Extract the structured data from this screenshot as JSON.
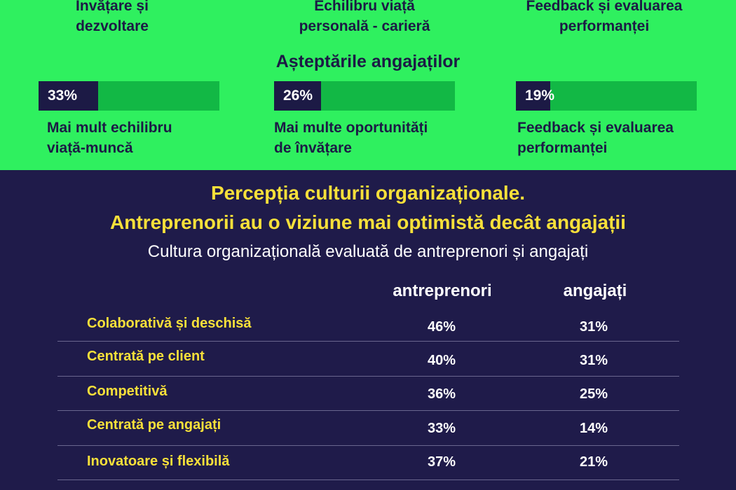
{
  "categories": [
    [
      "Învățare și",
      "dezvoltare"
    ],
    [
      "Echilibru viață",
      "personală - carieră"
    ],
    [
      "Feedback și evaluarea",
      "performanței"
    ]
  ],
  "expectations": {
    "title": "Așteptările angajaților",
    "items": [
      {
        "value": 0.33,
        "pct": "33%",
        "line1": "Mai mult echilibru",
        "line2": "viață-muncă"
      },
      {
        "value": 0.26,
        "pct": "26%",
        "line1": "Mai multe oportunități",
        "line2": "de învățare"
      },
      {
        "value": 0.19,
        "pct": "19%",
        "line1": "Feedback și evaluarea",
        "line2": "performanței"
      }
    ]
  },
  "culture": {
    "heading1": "Percepția culturii organizaționale.",
    "heading2": "Antreprenorii au o viziune mai optimistă decât angajații",
    "subtitle": "Cultura organizațională evaluată de antreprenori și angajați",
    "col1": "antreprenori",
    "col2": "angajați",
    "rows": [
      {
        "label": "Colaborativă și deschisă",
        "a": "46%",
        "b": "31%"
      },
      {
        "label": "Centrată pe client",
        "a": "40%",
        "b": "31%"
      },
      {
        "label": "Competitivă",
        "a": "36%",
        "b": "25%"
      },
      {
        "label": "Centrată pe angajați",
        "a": "33%",
        "b": "14%"
      },
      {
        "label": "Inovatoare și flexibilă",
        "a": "37%",
        "b": "21%"
      }
    ]
  },
  "colors": {
    "green": "#2ff05f",
    "bar_track": "#12b845",
    "navy": "#1f1b4a",
    "yellow": "#f7e03a"
  }
}
